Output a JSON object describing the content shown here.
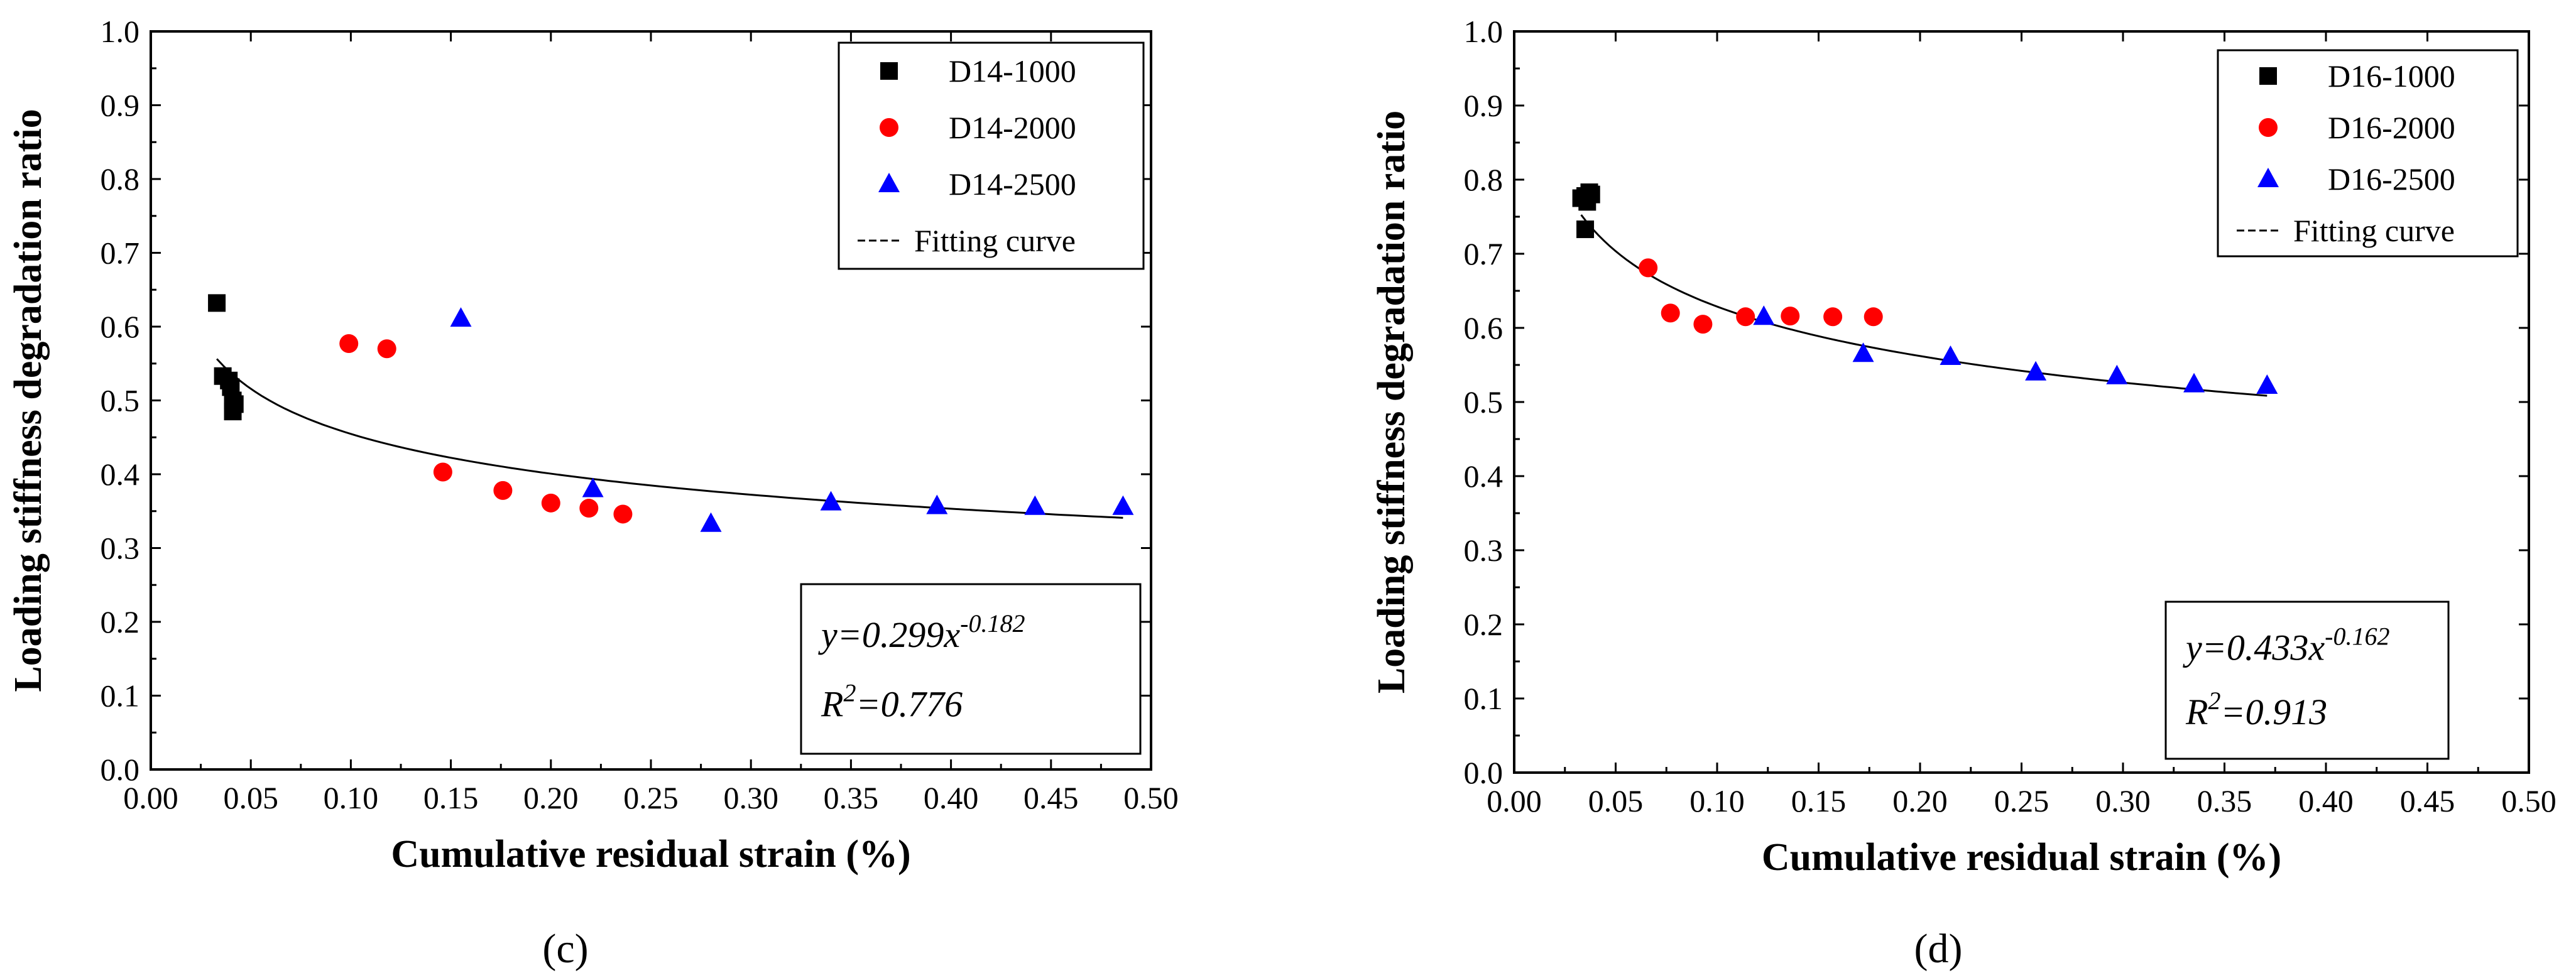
{
  "chart_data": [
    {
      "type": "scatter",
      "panel_label": "(c)",
      "xlabel": "Cumulative residual strain (%)",
      "ylabel": "Loading stiffness degradation ratio",
      "xlim": [
        0,
        0.5
      ],
      "ylim": [
        0,
        1.0
      ],
      "x_ticks": [
        "0.00",
        "0.05",
        "0.10",
        "0.15",
        "0.20",
        "0.25",
        "0.30",
        "0.35",
        "0.40",
        "0.45",
        "0.50"
      ],
      "y_ticks": [
        "0.0",
        "0.1",
        "0.2",
        "0.3",
        "0.4",
        "0.5",
        "0.6",
        "0.7",
        "0.8",
        "0.9",
        "1.0"
      ],
      "legend_position": "top-right",
      "series": [
        {
          "name": "D14-1000",
          "marker": "square",
          "color": "#000000",
          "x": [
            0.033,
            0.036,
            0.039,
            0.04,
            0.041,
            0.042,
            0.041
          ],
          "y": [
            0.632,
            0.533,
            0.527,
            0.518,
            0.5,
            0.495,
            0.485
          ]
        },
        {
          "name": "D14-2000",
          "marker": "circle",
          "color": "#ff0000",
          "x": [
            0.099,
            0.118,
            0.146,
            0.176,
            0.2,
            0.219,
            0.236
          ],
          "y": [
            0.577,
            0.57,
            0.403,
            0.378,
            0.361,
            0.354,
            0.346
          ]
        },
        {
          "name": "D14-2500",
          "marker": "triangle",
          "color": "#0000ff",
          "x": [
            0.155,
            0.221,
            0.28,
            0.34,
            0.393,
            0.442,
            0.486
          ],
          "y": [
            0.611,
            0.38,
            0.333,
            0.362,
            0.357,
            0.356,
            0.356
          ]
        }
      ],
      "fit": {
        "name": "Fitting curve",
        "a": 0.299,
        "b": -0.182,
        "x_range": [
          0.033,
          0.486
        ]
      },
      "equation": {
        "lead": "y=0.299x",
        "exponent": "-0.182",
        "r2_lead": "R",
        "r2_exp": "2",
        "r2_value": "=0.776"
      }
    },
    {
      "type": "scatter",
      "panel_label": "(d)",
      "xlabel": "Cumulative residual strain (%)",
      "ylabel": "Loading stiffness degradation ratio",
      "xlim": [
        0,
        0.5
      ],
      "ylim": [
        0,
        1.0
      ],
      "x_ticks": [
        "0.00",
        "0.05",
        "0.10",
        "0.15",
        "0.20",
        "0.25",
        "0.30",
        "0.35",
        "0.40",
        "0.45",
        "0.50"
      ],
      "y_ticks": [
        "0.0",
        "0.1",
        "0.2",
        "0.3",
        "0.4",
        "0.5",
        "0.6",
        "0.7",
        "0.8",
        "0.9",
        "1.0"
      ],
      "legend_position": "top-right",
      "series": [
        {
          "name": "D16-1000",
          "marker": "square",
          "color": "#000000",
          "x": [
            0.033,
            0.035,
            0.036,
            0.037,
            0.038,
            0.035
          ],
          "y": [
            0.775,
            0.778,
            0.77,
            0.783,
            0.78,
            0.733
          ]
        },
        {
          "name": "D16-2000",
          "marker": "circle",
          "color": "#ff0000",
          "x": [
            0.066,
            0.077,
            0.093,
            0.114,
            0.136,
            0.157,
            0.177
          ],
          "y": [
            0.681,
            0.62,
            0.605,
            0.615,
            0.616,
            0.615,
            0.615
          ]
        },
        {
          "name": "D16-2500",
          "marker": "triangle",
          "color": "#0000ff",
          "x": [
            0.123,
            0.172,
            0.215,
            0.257,
            0.297,
            0.335,
            0.371
          ],
          "y": [
            0.615,
            0.565,
            0.561,
            0.54,
            0.535,
            0.524,
            0.522
          ]
        }
      ],
      "fit": {
        "name": "Fitting curve",
        "a": 0.433,
        "b": -0.162,
        "x_range": [
          0.033,
          0.371
        ]
      },
      "equation": {
        "lead": "y=0.433x",
        "exponent": "-0.162",
        "r2_lead": "R",
        "r2_exp": "2",
        "r2_value": "=0.913"
      }
    }
  ]
}
